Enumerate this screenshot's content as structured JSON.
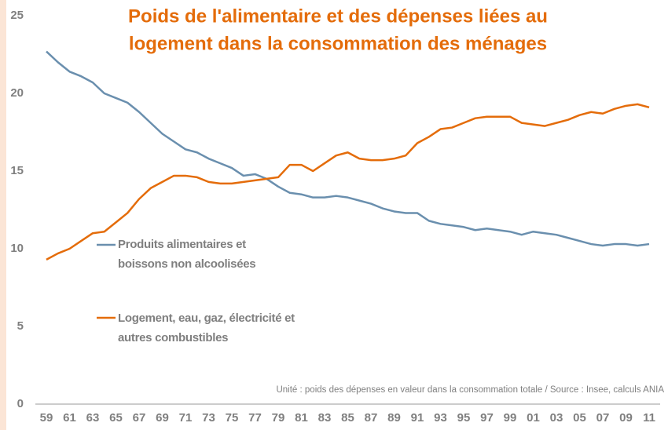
{
  "chart_data": {
    "type": "line",
    "title": [
      "Poids de l'alimentaire et des dépenses liées au",
      "logement dans la consommation des ménages"
    ],
    "note": "Unité : poids des dépenses en valeur dans la consommation totale / Source : Insee, calculs ANIA",
    "categories": [
      "59",
      null,
      "61",
      null,
      "63",
      null,
      "65",
      null,
      "67",
      null,
      "69",
      null,
      "71",
      null,
      "73",
      null,
      "75",
      null,
      "77",
      null,
      "79",
      null,
      "81",
      null,
      "83",
      null,
      "85",
      null,
      "87",
      null,
      "89",
      null,
      "91",
      null,
      "93",
      null,
      "95",
      null,
      "97",
      null,
      "99",
      null,
      "01",
      null,
      "03",
      null,
      "05",
      null,
      "07",
      null,
      "09",
      null,
      "11"
    ],
    "series": [
      {
        "name": "Produits alimentaires et boissons non alcoolisées",
        "color": "#6a8fae",
        "values": [
          22.7,
          22.0,
          21.4,
          21.1,
          20.7,
          20.0,
          19.7,
          19.4,
          18.8,
          18.1,
          17.4,
          16.9,
          16.4,
          16.2,
          15.8,
          15.5,
          15.2,
          14.7,
          14.8,
          14.5,
          14.0,
          13.6,
          13.5,
          13.3,
          13.3,
          13.4,
          13.3,
          13.1,
          12.9,
          12.6,
          12.4,
          12.3,
          12.3,
          11.8,
          11.6,
          11.5,
          11.4,
          11.2,
          11.3,
          11.2,
          11.1,
          10.9,
          11.1,
          11.0,
          10.9,
          10.7,
          10.5,
          10.3,
          10.2,
          10.3,
          10.3,
          10.2,
          10.3
        ]
      },
      {
        "name": "Logement, eau, gaz, électricité et autres combustibles",
        "color": "#e46c0a",
        "values": [
          9.3,
          9.7,
          10.0,
          10.5,
          11.0,
          11.1,
          11.7,
          12.3,
          13.2,
          13.9,
          14.3,
          14.7,
          14.7,
          14.6,
          14.3,
          14.2,
          14.2,
          14.3,
          14.4,
          14.5,
          14.6,
          15.4,
          15.4,
          15.0,
          15.5,
          16.0,
          16.2,
          15.8,
          15.7,
          15.7,
          15.8,
          16.0,
          16.8,
          17.2,
          17.7,
          17.8,
          18.1,
          18.4,
          18.5,
          18.5,
          18.5,
          18.1,
          18.0,
          17.9,
          18.1,
          18.3,
          18.6,
          18.8,
          18.7,
          19.0,
          19.2,
          19.3,
          19.1
        ]
      }
    ],
    "ylim": [
      0,
      25
    ],
    "yticks": [
      0,
      5,
      10,
      15,
      20,
      25
    ],
    "grid": false
  }
}
